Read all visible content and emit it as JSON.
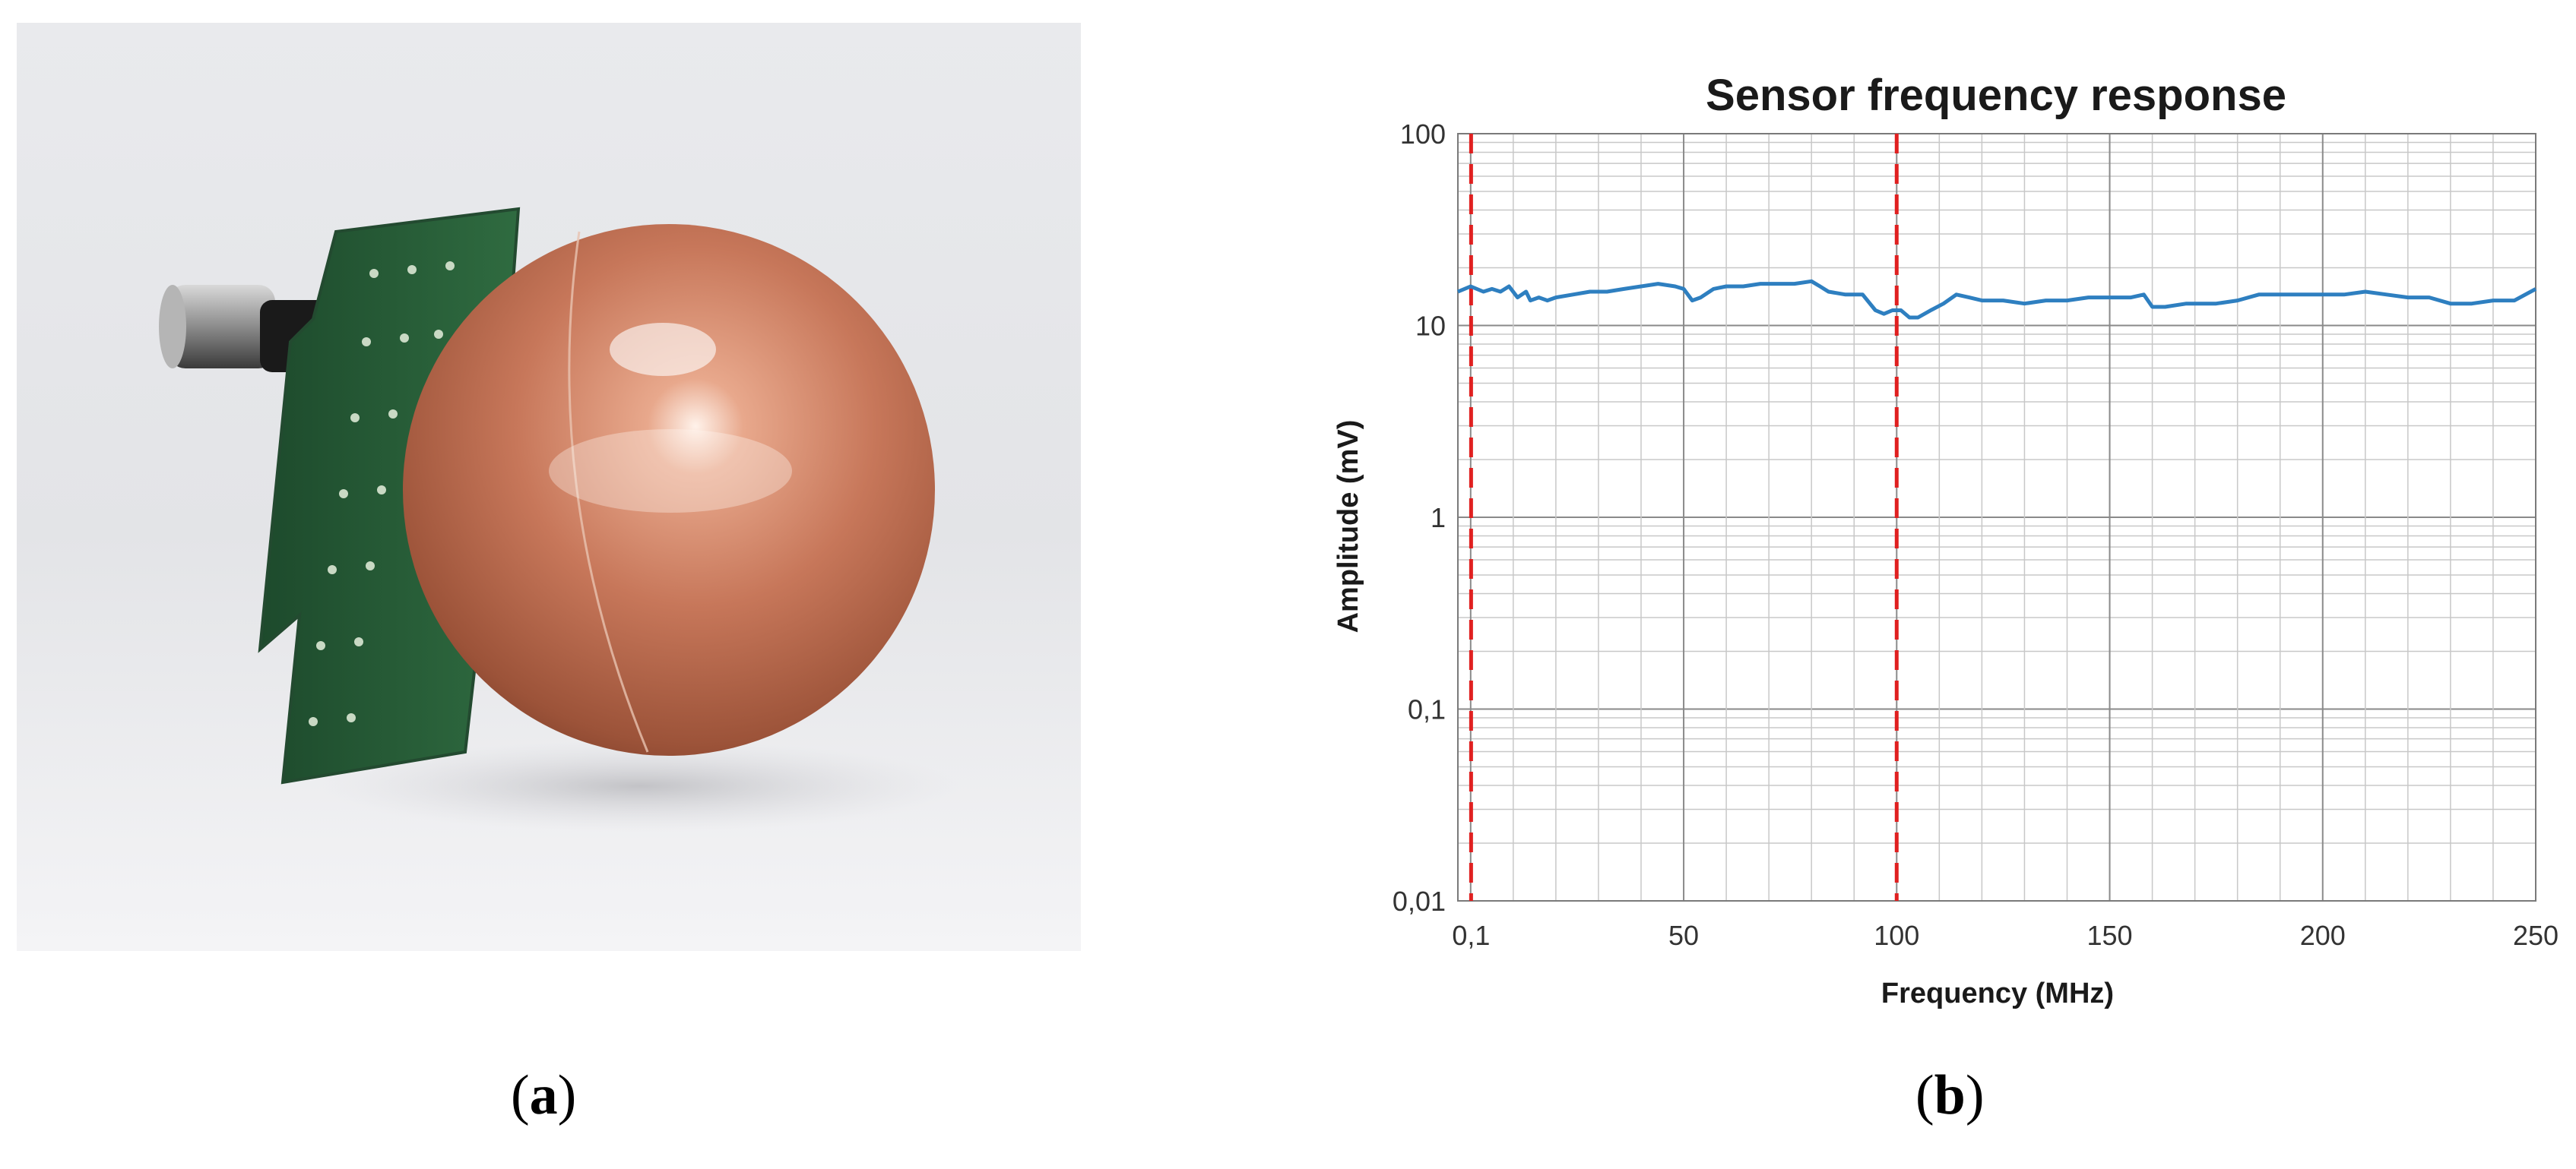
{
  "figure": {
    "panel_a": {
      "caption_open": "(",
      "caption_letter": "a",
      "caption_close": ")"
    },
    "panel_b": {
      "caption_open": "(",
      "caption_letter": "b",
      "caption_close": ")"
    }
  },
  "chart_data": {
    "type": "line",
    "title": "Sensor frequency response",
    "xlabel": "Frequency (MHz)",
    "ylabel": "Amplitude (mV)",
    "xlim": [
      -3,
      250
    ],
    "ylim": [
      0.01,
      100
    ],
    "yscale": "log",
    "grid": true,
    "line_color": "#2E7FC0",
    "marker_color": "#E02020",
    "x_ticks": [
      {
        "value": 0.1,
        "label": "0,1"
      },
      {
        "value": 50,
        "label": "50"
      },
      {
        "value": 100,
        "label": "100"
      },
      {
        "value": 150,
        "label": "150"
      },
      {
        "value": 200,
        "label": "200"
      },
      {
        "value": 250,
        "label": "250"
      }
    ],
    "y_ticks": [
      {
        "value": 0.01,
        "label": "0,01"
      },
      {
        "value": 0.1,
        "label": "0,1"
      },
      {
        "value": 1,
        "label": "1"
      },
      {
        "value": 10,
        "label": "10"
      },
      {
        "value": 100,
        "label": "100"
      }
    ],
    "vertical_markers": [
      0.1,
      100
    ],
    "series": [
      {
        "x": [
          -3,
          0,
          3,
          5,
          7,
          9,
          11,
          13,
          14,
          16,
          18,
          20,
          24,
          28,
          32,
          36,
          40,
          44,
          48,
          50,
          52,
          54,
          57,
          60,
          64,
          68,
          72,
          76,
          80,
          82,
          84,
          88,
          92,
          95,
          97,
          99,
          101,
          103,
          105,
          108,
          111,
          114,
          117,
          120,
          125,
          130,
          135,
          140,
          145,
          150,
          155,
          158,
          160,
          163,
          168,
          175,
          180,
          185,
          190,
          195,
          200,
          205,
          210,
          215,
          220,
          225,
          230,
          235,
          240,
          245,
          250
        ],
        "y": [
          15,
          16,
          15,
          15.5,
          15,
          16,
          14,
          15,
          13.5,
          14,
          13.5,
          14,
          14.5,
          15,
          15,
          15.5,
          16,
          16.5,
          16,
          15.5,
          13.5,
          14,
          15.5,
          16,
          16,
          16.5,
          16.5,
          16.5,
          17,
          16,
          15,
          14.5,
          14.5,
          12,
          11.5,
          12,
          12,
          11,
          11,
          12,
          13,
          14.5,
          14,
          13.5,
          13.5,
          13,
          13.5,
          13.5,
          14,
          14,
          14,
          14.5,
          12.5,
          12.5,
          13,
          13,
          13.5,
          14.5,
          14.5,
          14.5,
          14.5,
          14.5,
          15,
          14.5,
          14,
          14,
          13,
          13,
          13.5,
          13.5,
          15.5
        ]
      }
    ]
  }
}
